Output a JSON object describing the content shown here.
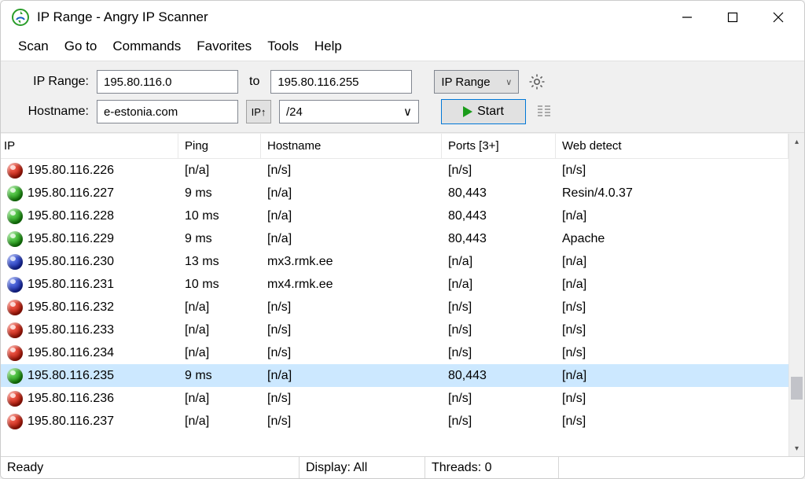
{
  "window": {
    "title": "IP Range - Angry IP Scanner"
  },
  "menu": {
    "items": [
      "Scan",
      "Go to",
      "Commands",
      "Favorites",
      "Tools",
      "Help"
    ]
  },
  "toolbar": {
    "iprange_label": "IP Range:",
    "ip_from": "195.80.116.0",
    "to_label": "to",
    "ip_to": "195.80.116.255",
    "range_selector": "IP Range",
    "hostname_label": "Hostname:",
    "hostname": "e-estonia.com",
    "ipup_label": "IP↑",
    "netmask": "/24",
    "start_label": "Start"
  },
  "columns": [
    "IP",
    "Ping",
    "Hostname",
    "Ports [3+]",
    "Web detect"
  ],
  "col_widths": {
    "ip": 226,
    "ping": 105,
    "host": 230,
    "ports": 145
  },
  "colors": {
    "red": "#c03020",
    "green": "#1a9c1a",
    "blue": "#2030a8",
    "selected_row": "#cce8ff"
  },
  "selected_index": 9,
  "scrollbar": {
    "thumb_top_pct": 78,
    "thumb_height_pct": 8
  },
  "rows": [
    {
      "status": "red",
      "ip": "195.80.116.226",
      "ping": "[n/a]",
      "host": "[n/s]",
      "ports": "[n/s]",
      "web": "[n/s]"
    },
    {
      "status": "green",
      "ip": "195.80.116.227",
      "ping": "9 ms",
      "host": "[n/a]",
      "ports": "80,443",
      "web": "Resin/4.0.37"
    },
    {
      "status": "green",
      "ip": "195.80.116.228",
      "ping": "10 ms",
      "host": "[n/a]",
      "ports": "80,443",
      "web": "[n/a]"
    },
    {
      "status": "green",
      "ip": "195.80.116.229",
      "ping": "9 ms",
      "host": "[n/a]",
      "ports": "80,443",
      "web": "Apache"
    },
    {
      "status": "blue",
      "ip": "195.80.116.230",
      "ping": "13 ms",
      "host": "mx3.rmk.ee",
      "ports": "[n/a]",
      "web": "[n/a]"
    },
    {
      "status": "blue",
      "ip": "195.80.116.231",
      "ping": "10 ms",
      "host": "mx4.rmk.ee",
      "ports": "[n/a]",
      "web": "[n/a]"
    },
    {
      "status": "red",
      "ip": "195.80.116.232",
      "ping": "[n/a]",
      "host": "[n/s]",
      "ports": "[n/s]",
      "web": "[n/s]"
    },
    {
      "status": "red",
      "ip": "195.80.116.233",
      "ping": "[n/a]",
      "host": "[n/s]",
      "ports": "[n/s]",
      "web": "[n/s]"
    },
    {
      "status": "red",
      "ip": "195.80.116.234",
      "ping": "[n/a]",
      "host": "[n/s]",
      "ports": "[n/s]",
      "web": "[n/s]"
    },
    {
      "status": "green",
      "ip": "195.80.116.235",
      "ping": "9 ms",
      "host": "[n/a]",
      "ports": "80,443",
      "web": "[n/a]"
    },
    {
      "status": "red",
      "ip": "195.80.116.236",
      "ping": "[n/a]",
      "host": "[n/s]",
      "ports": "[n/s]",
      "web": "[n/s]"
    },
    {
      "status": "red",
      "ip": "195.80.116.237",
      "ping": "[n/a]",
      "host": "[n/s]",
      "ports": "[n/s]",
      "web": "[n/s]"
    }
  ],
  "statusbar": {
    "ready": "Ready",
    "display": "Display: All",
    "threads": "Threads: 0"
  }
}
